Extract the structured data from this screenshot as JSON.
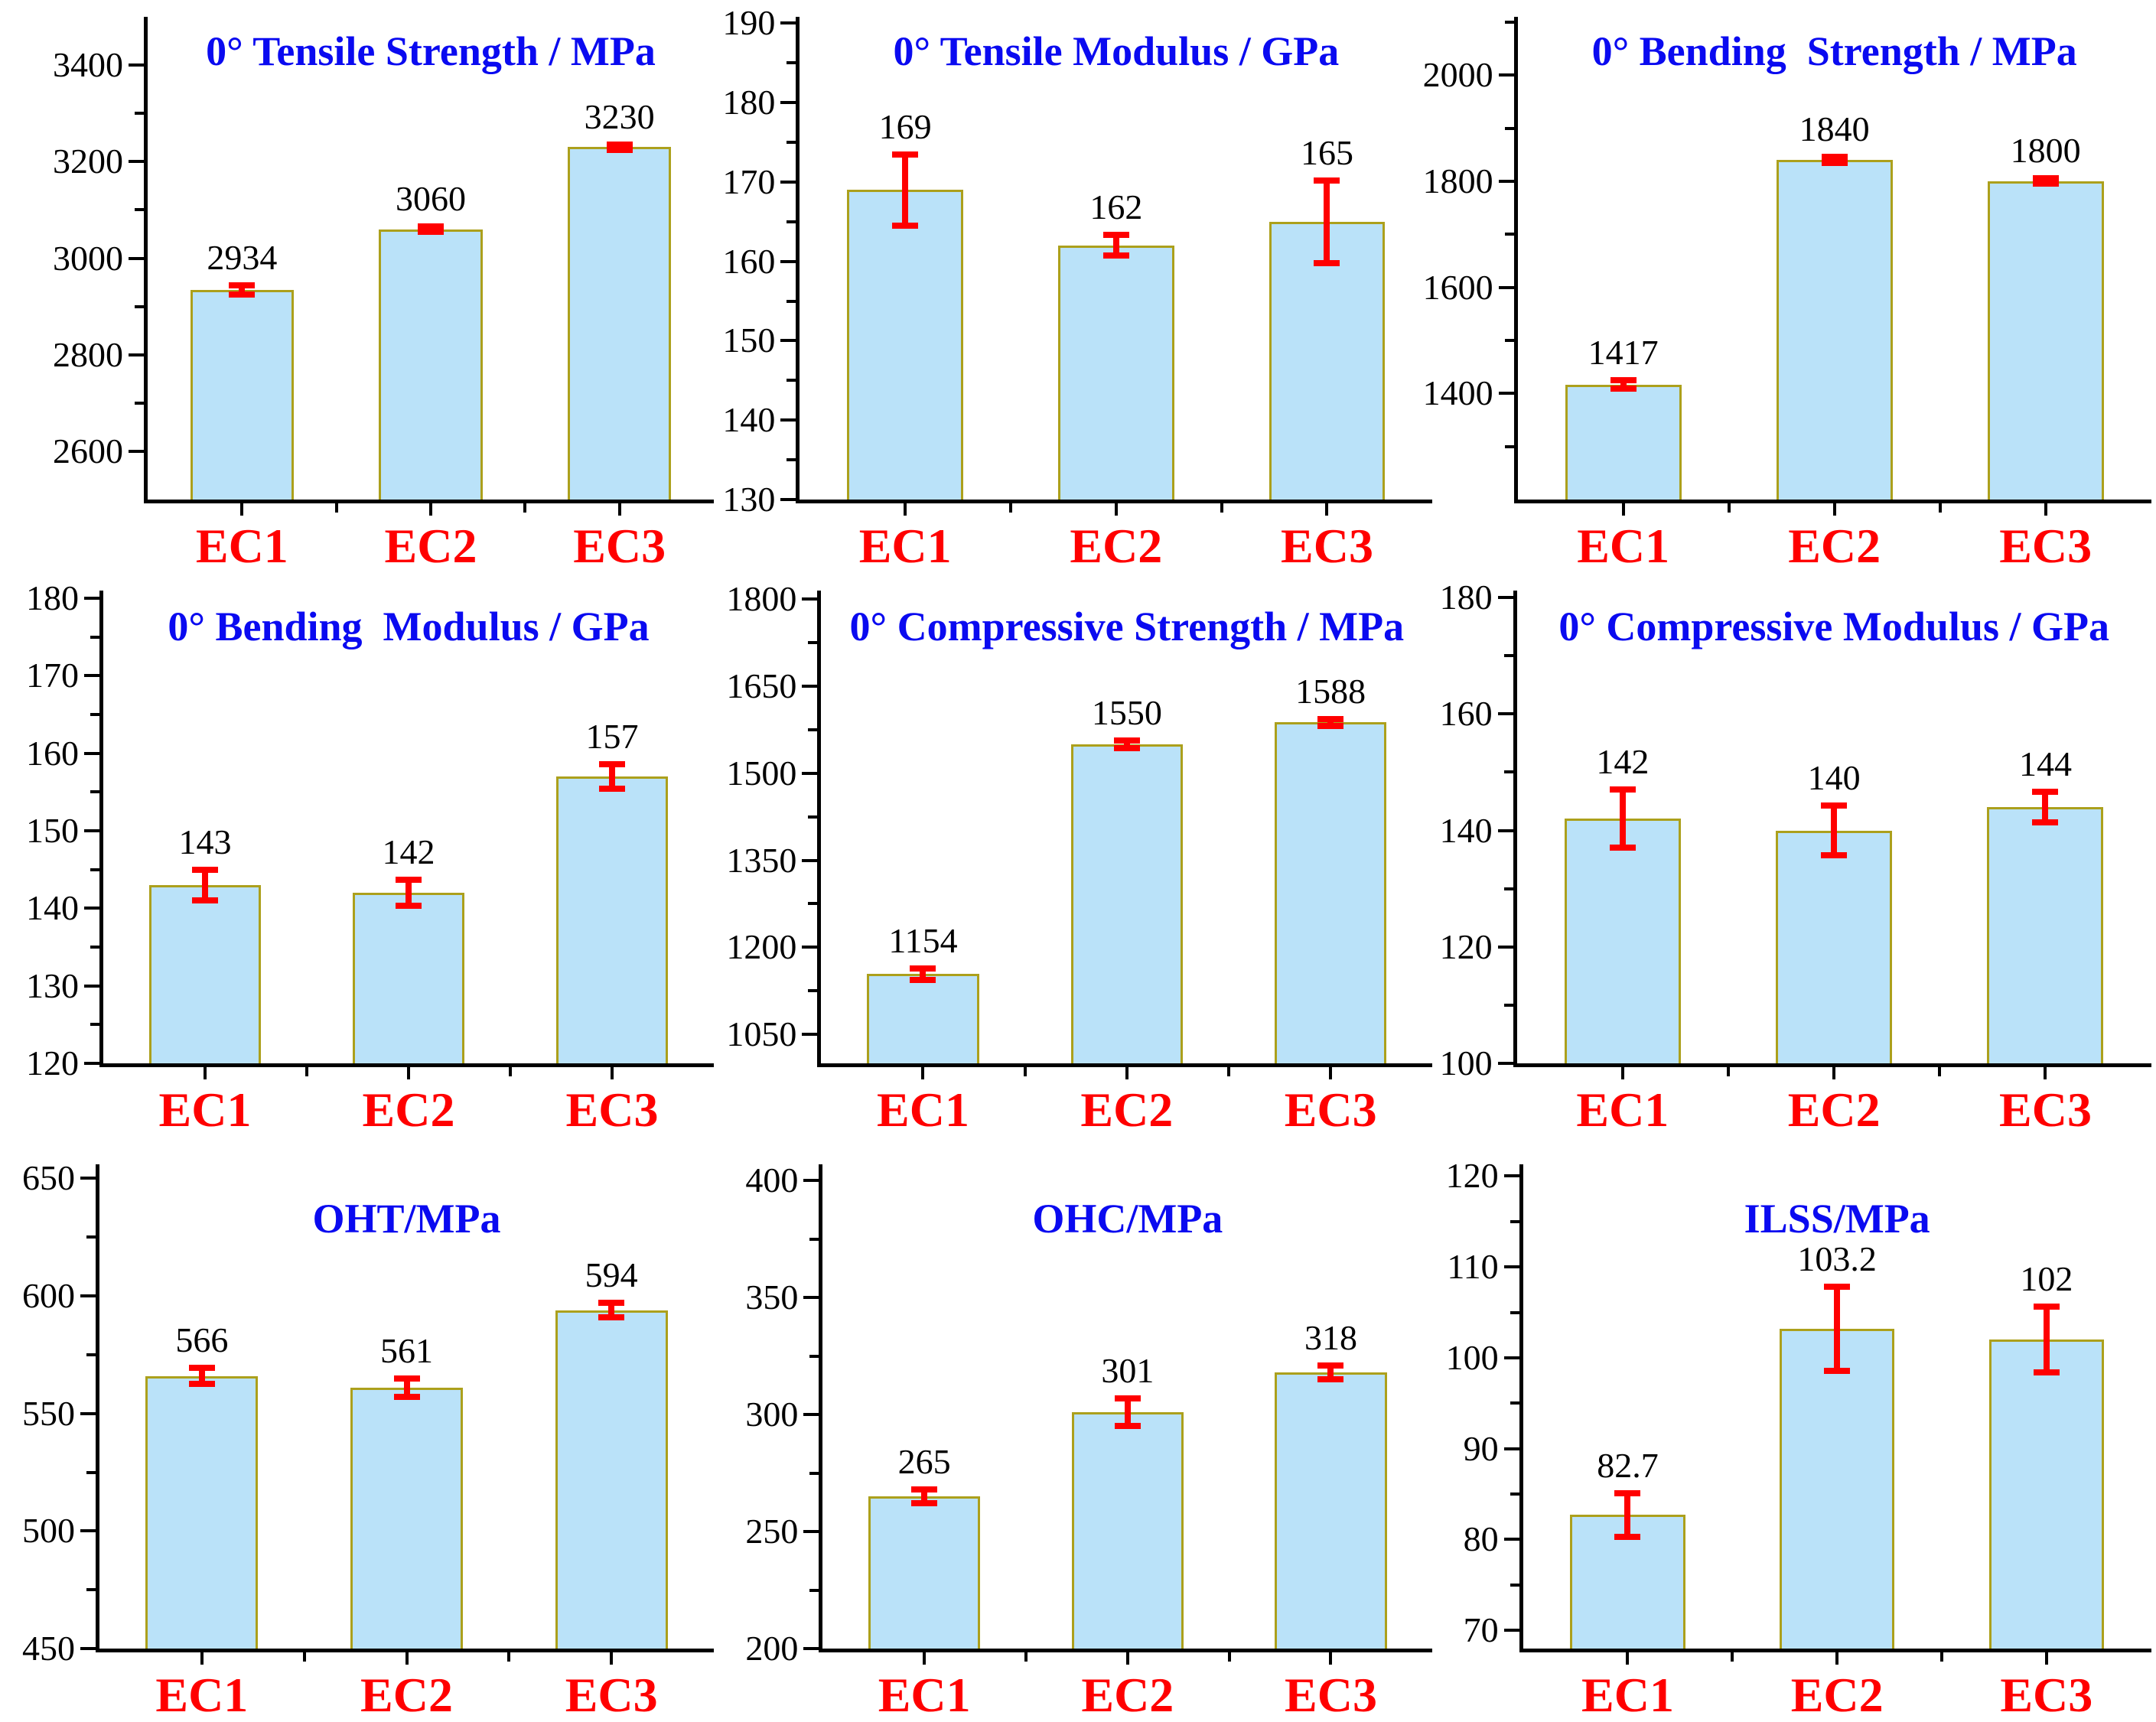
{
  "figure": {
    "background": "#FFFFFF",
    "bar_fill": "#BAE2F9",
    "bar_border": "#ACA01C",
    "error_color": "#FF0000",
    "title_color": "#0A0AF0",
    "category_color": "#FF0000",
    "axis_color": "#000000",
    "tick_label_color": "#000000",
    "value_label_color": "#000000"
  },
  "chart_data": [
    {
      "type": "bar",
      "title": "0° Tensile Strength / MPa",
      "categories": [
        "EC1",
        "EC2",
        "EC3"
      ],
      "values": [
        2934,
        3060,
        3230
      ],
      "errors": [
        10,
        6,
        6
      ],
      "value_labels": [
        "2934",
        "3060",
        "3230"
      ],
      "ylim": [
        2500,
        3500
      ],
      "major_ticks": [
        2600,
        2800,
        3000,
        3200,
        3400
      ],
      "minor_ticks": [
        2700,
        2900,
        3100,
        3300
      ],
      "grid": false,
      "legend": false
    },
    {
      "type": "bar",
      "title": "0° Tensile Modulus / GPa",
      "categories": [
        "EC1",
        "EC2",
        "EC3"
      ],
      "values": [
        169,
        162,
        165
      ],
      "errors": [
        4.5,
        1.3,
        5.2
      ],
      "value_labels": [
        "169",
        "162",
        "165"
      ],
      "ylim": [
        130,
        190.8
      ],
      "major_ticks": [
        130,
        140,
        150,
        160,
        170,
        180,
        190
      ],
      "minor_ticks": [
        135,
        145,
        155,
        165,
        175,
        185
      ],
      "grid": false,
      "legend": false
    },
    {
      "type": "bar",
      "title": "0° Bending  Strength / MPa",
      "categories": [
        "EC1",
        "EC2",
        "EC3"
      ],
      "values": [
        1417,
        1840,
        1800
      ],
      "errors": [
        8,
        6,
        5
      ],
      "value_labels": [
        "1417",
        "1840",
        "1800"
      ],
      "ylim": [
        1200,
        2110
      ],
      "major_ticks": [
        1400,
        1600,
        1800,
        2000
      ],
      "minor_ticks": [
        1300,
        1500,
        1700,
        1900,
        2100
      ],
      "grid": false,
      "legend": false
    },
    {
      "type": "bar",
      "title": "0° Bending  Modulus / GPa",
      "categories": [
        "EC1",
        "EC2",
        "EC3"
      ],
      "values": [
        143,
        142,
        157
      ],
      "errors": [
        2,
        1.7,
        1.6
      ],
      "value_labels": [
        "143",
        "142",
        "157"
      ],
      "ylim": [
        120,
        181
      ],
      "major_ticks": [
        120,
        130,
        140,
        150,
        160,
        170,
        180
      ],
      "minor_ticks": [
        125,
        135,
        145,
        155,
        165,
        175
      ],
      "grid": false,
      "legend": false
    },
    {
      "type": "bar",
      "title": "0° Compressive Strength / MPa",
      "categories": [
        "EC1",
        "EC2",
        "EC3"
      ],
      "values": [
        1154,
        1550,
        1588
      ],
      "errors": [
        10,
        7,
        6
      ],
      "value_labels": [
        "1154",
        "1550",
        "1588"
      ],
      "ylim": [
        1000,
        1815
      ],
      "major_ticks": [
        1050,
        1200,
        1350,
        1500,
        1650,
        1800
      ],
      "minor_ticks": [
        1125,
        1275,
        1425,
        1575,
        1725
      ],
      "grid": false,
      "legend": false
    },
    {
      "type": "bar",
      "title": "0° Compressive Modulus / GPa",
      "categories": [
        "EC1",
        "EC2",
        "EC3"
      ],
      "values": [
        142,
        140,
        144
      ],
      "errors": [
        5,
        4.3,
        2.6
      ],
      "value_labels": [
        "142",
        "140",
        "144"
      ],
      "ylim": [
        100,
        181.2
      ],
      "major_ticks": [
        100,
        120,
        140,
        160,
        180
      ],
      "minor_ticks": [
        110,
        130,
        150,
        170
      ],
      "grid": false,
      "legend": false
    },
    {
      "type": "bar",
      "title": "OHT/MPa",
      "categories": [
        "EC1",
        "EC2",
        "EC3"
      ],
      "values": [
        566,
        561,
        594
      ],
      "errors": [
        3.5,
        4,
        3
      ],
      "value_labels": [
        "566",
        "561",
        "594"
      ],
      "ylim": [
        450,
        656
      ],
      "major_ticks": [
        450,
        500,
        550,
        600,
        650
      ],
      "minor_ticks": [
        475,
        525,
        575,
        625
      ],
      "grid": false,
      "legend": false
    },
    {
      "type": "bar",
      "title": "OHC/MPa",
      "categories": [
        "EC1",
        "EC2",
        "EC3"
      ],
      "values": [
        265,
        301,
        318
      ],
      "errors": [
        3,
        6,
        3
      ],
      "value_labels": [
        "265",
        "301",
        "318"
      ],
      "ylim": [
        200,
        407
      ],
      "major_ticks": [
        200,
        250,
        300,
        350,
        400
      ],
      "minor_ticks": [
        225,
        275,
        325,
        375
      ],
      "grid": false,
      "legend": false
    },
    {
      "type": "bar",
      "title": "ILSS/MPa",
      "categories": [
        "EC1",
        "EC2",
        "EC3"
      ],
      "values": [
        82.7,
        103.2,
        102
      ],
      "errors": [
        2.4,
        4.6,
        3.6
      ],
      "value_labels": [
        "82.7",
        "103.2",
        "102"
      ],
      "ylim": [
        68,
        121.3
      ],
      "major_ticks": [
        70,
        80,
        90,
        100,
        110,
        120
      ],
      "minor_ticks": [
        75,
        85,
        95,
        105,
        115
      ],
      "grid": false,
      "legend": false
    }
  ]
}
